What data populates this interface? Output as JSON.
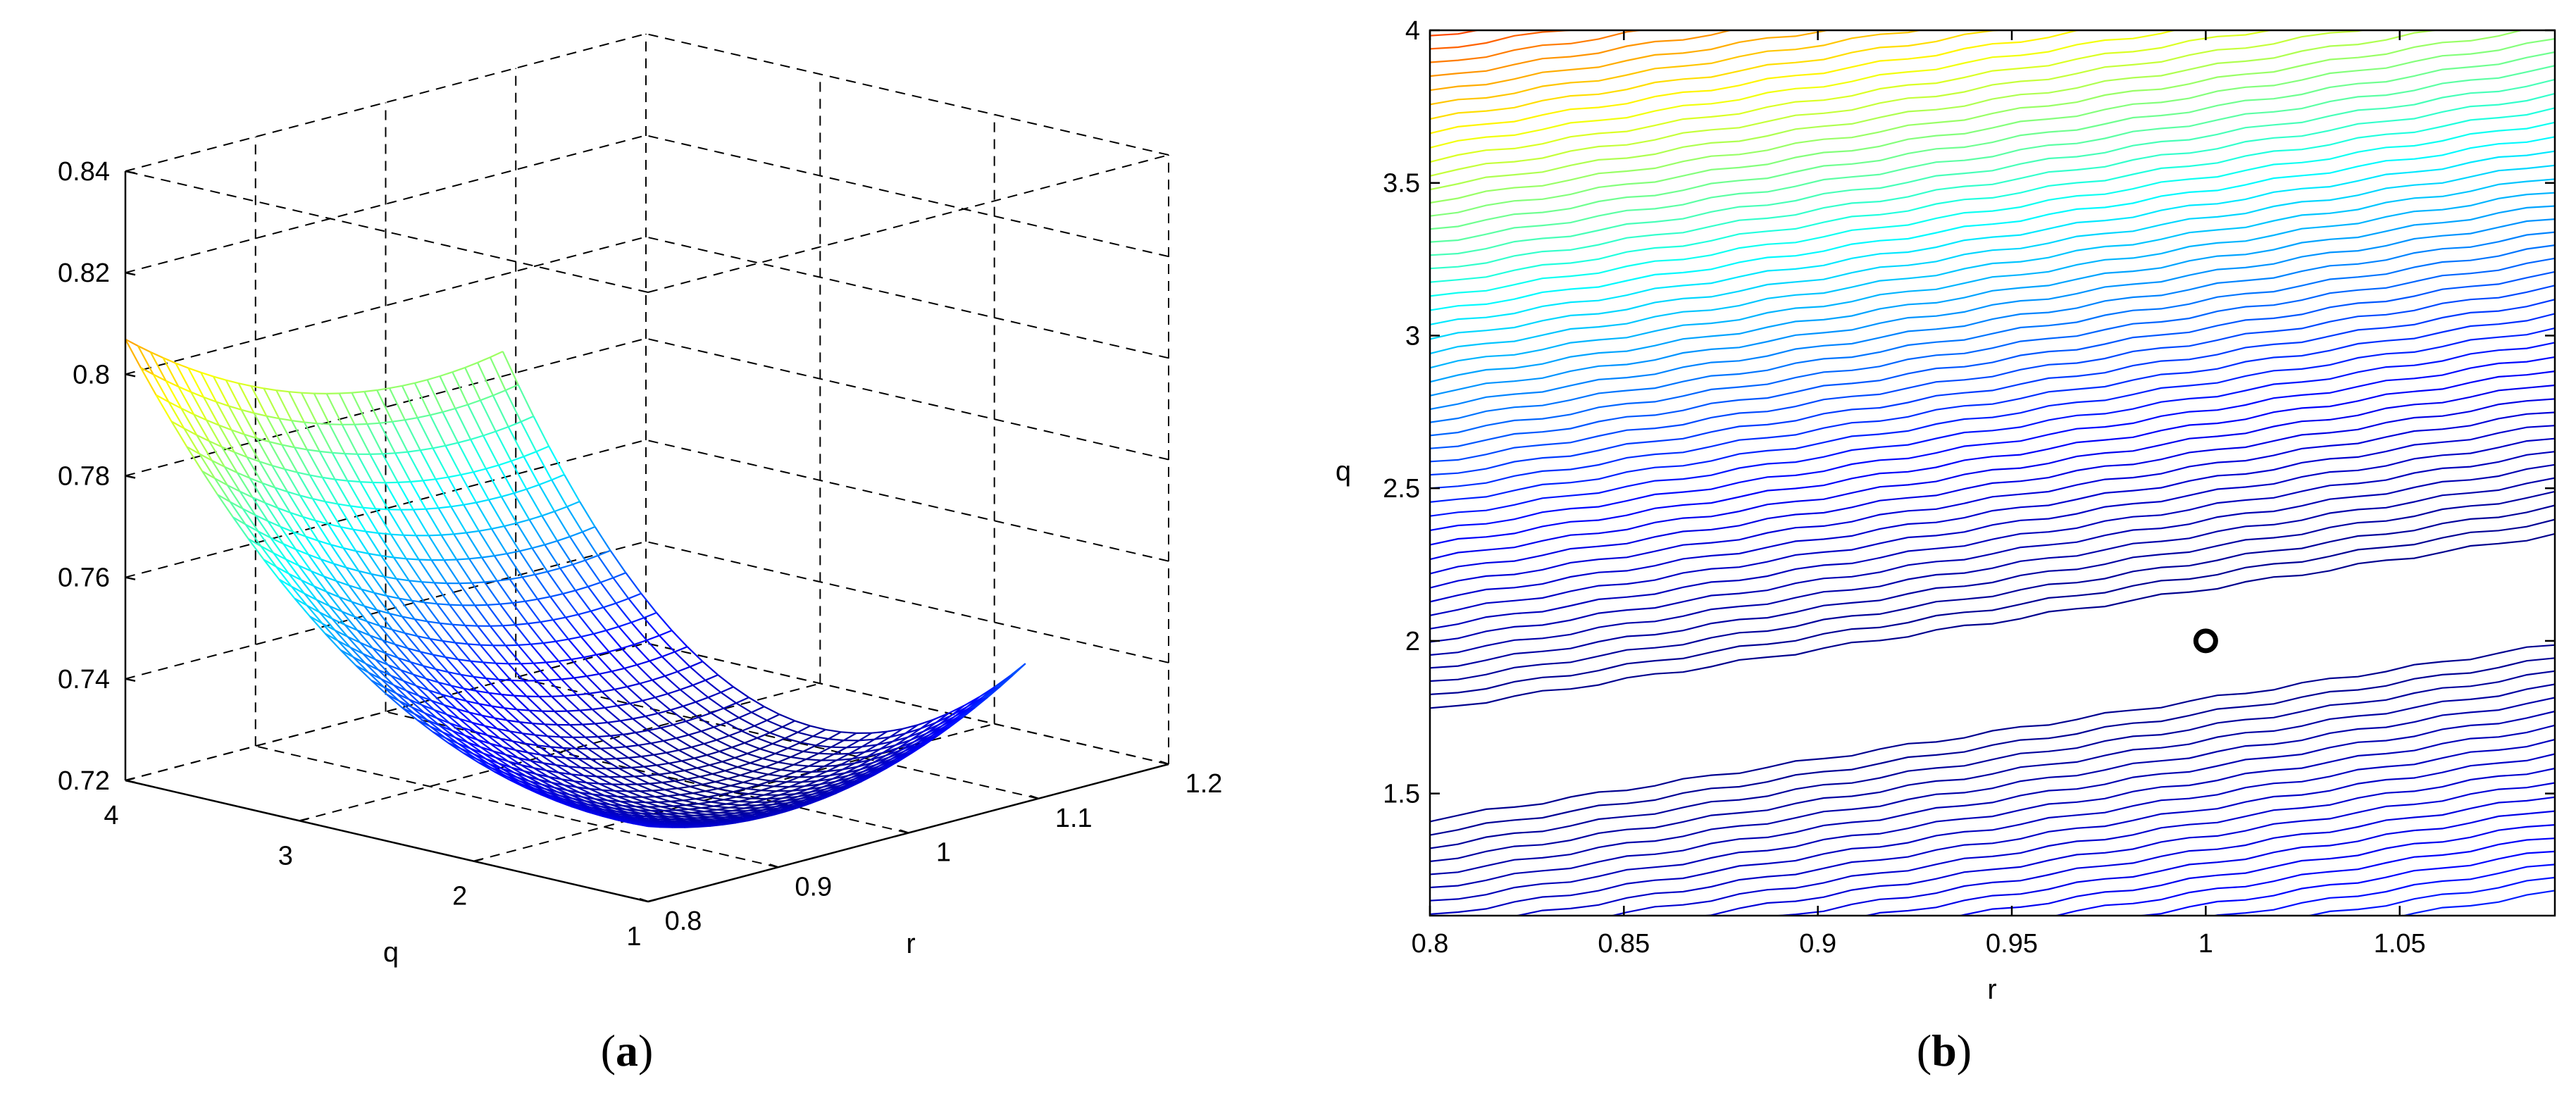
{
  "chart_data": [
    {
      "type": "surface",
      "panel_label": "a",
      "xlabel": "q",
      "ylabel": "r",
      "x_ticks": [
        1,
        2,
        3,
        4
      ],
      "y_ticks": [
        0.8,
        0.9,
        1,
        1.1,
        1.2
      ],
      "z_ticks": [
        0.72,
        0.74,
        0.76,
        0.78,
        0.8,
        0.82,
        0.84
      ],
      "x_tick_labels": [
        "1",
        "2",
        "3",
        "4"
      ],
      "y_tick_labels": [
        "0.8",
        "0.9",
        "1",
        "1.1",
        "1.2"
      ],
      "z_tick_labels": [
        "0.72",
        "0.74",
        "0.76",
        "0.78",
        "0.8",
        "0.82",
        "0.84"
      ],
      "xlim": [
        1,
        4
      ],
      "ylim": [
        0.8,
        1.2
      ],
      "zlim": [
        0.72,
        0.84
      ],
      "grid": true,
      "colormap": "jet",
      "mesh_extent": {
        "q": [
          1,
          4
        ],
        "r": [
          0.8,
          1.09
        ]
      },
      "corner_values": [
        {
          "q": 4,
          "r": 0.8,
          "z": 0.837
        },
        {
          "q": 1,
          "r": 0.8,
          "z": 0.743
        },
        {
          "q": 1,
          "r": 1.09,
          "z": 0.766
        },
        {
          "q": 2,
          "r": 1.0,
          "z": 0.722
        }
      ]
    },
    {
      "type": "contour",
      "panel_label": "b",
      "xlabel": "r",
      "ylabel": "q",
      "x_ticks": [
        0.8,
        0.85,
        0.9,
        0.95,
        1,
        1.05
      ],
      "y_ticks": [
        1.5,
        2,
        2.5,
        3,
        3.5,
        4
      ],
      "x_tick_labels": [
        "0.8",
        "0.85",
        "0.9",
        "0.95",
        "1",
        "1.05"
      ],
      "y_tick_labels": [
        "1.5",
        "2",
        "2.5",
        "3",
        "3.5",
        "4"
      ],
      "xlim": [
        0.8,
        1.09
      ],
      "ylim": [
        1.1,
        4
      ],
      "colormap": "jet",
      "minimum_marker": {
        "r": 1.0,
        "q": 2.0,
        "marker": "circle"
      }
    }
  ],
  "captions": {
    "a_label": "a",
    "b_label": "b",
    "open": "(",
    "close": ")"
  }
}
